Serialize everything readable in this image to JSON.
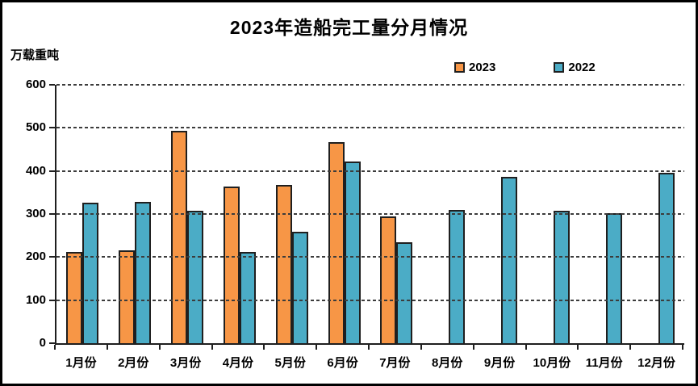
{
  "title": "2023年造船完工量分月情况",
  "y_axis_unit": "万载重吨",
  "colors": {
    "series_2023": "#F79646",
    "series_2022": "#4BACC6",
    "bar_border": "#1f1f1f",
    "gridline": "#3c3c3c",
    "frame_border": "#000000",
    "background": "#ffffff"
  },
  "chart_data": {
    "type": "bar",
    "title": "2023年造船完工量分月情况",
    "xlabel": "",
    "ylabel": "万载重吨",
    "ylim": [
      0,
      600
    ],
    "yticks": [
      0,
      100,
      200,
      300,
      400,
      500,
      600
    ],
    "grid": "horizontal-dashed",
    "legend_position": "top-right",
    "categories": [
      "1月份",
      "2月份",
      "3月份",
      "4月份",
      "5月份",
      "6月份",
      "7月份",
      "8月份",
      "9月份",
      "10月份",
      "11月份",
      "12月份"
    ],
    "series": [
      {
        "name": "2023",
        "color": "#F79646",
        "values": [
          212,
          215,
          494,
          364,
          368,
          466,
          295,
          null,
          null,
          null,
          null,
          null
        ]
      },
      {
        "name": "2022",
        "color": "#4BACC6",
        "values": [
          326,
          329,
          307,
          212,
          258,
          422,
          234,
          310,
          386,
          307,
          302,
          396
        ]
      }
    ]
  }
}
